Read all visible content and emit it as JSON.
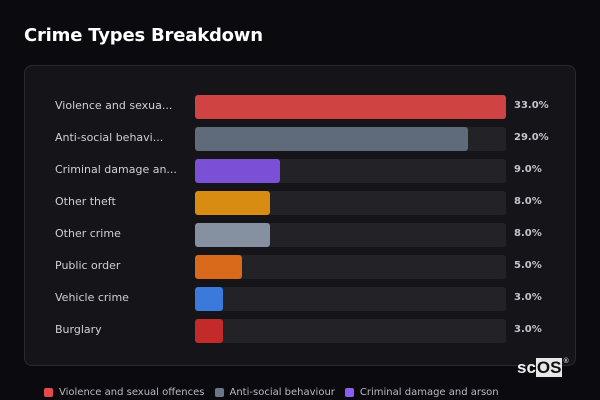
{
  "header": {
    "title": "Crime Types Breakdown"
  },
  "chart_data": {
    "type": "bar",
    "orientation": "horizontal",
    "title": "Crime Types Breakdown",
    "categories": [
      "Violence and sexual offences",
      "Anti-social behaviour",
      "Criminal damage and arson",
      "Other theft",
      "Other crime",
      "Public order",
      "Vehicle crime",
      "Burglary"
    ],
    "display_labels": [
      "Violence and sexua...",
      "Anti-social behavi...",
      "Criminal damage an...",
      "Other theft",
      "Other crime",
      "Public order",
      "Vehicle crime",
      "Burglary"
    ],
    "values": [
      33.0,
      29.0,
      9.0,
      8.0,
      8.0,
      5.0,
      3.0,
      3.0
    ],
    "value_labels": [
      "33.0%",
      "29.0%",
      "9.0%",
      "8.0%",
      "8.0%",
      "5.0%",
      "3.0%",
      "3.0%"
    ],
    "colors": [
      "#d04343",
      "#5f6b7b",
      "#7b4fd6",
      "#d88d12",
      "#8590a0",
      "#d9691b",
      "#3b79db",
      "#c42a2a"
    ],
    "xlabel": "",
    "ylabel": "",
    "xlim": [
      0,
      33
    ],
    "grid": false,
    "legend": {
      "position": "bottom",
      "entries": [
        {
          "label": "Violence and sexual offences",
          "color": "#e5484d"
        },
        {
          "label": "Anti-social behaviour",
          "color": "#6b7789"
        },
        {
          "label": "Criminal damage and arson",
          "color": "#8b5cf6"
        }
      ]
    }
  },
  "rows": [
    {
      "label": "Violence and sexua...",
      "pct": "33.0%",
      "width": 100,
      "color": "#d04343"
    },
    {
      "label": "Anti-social behavi...",
      "pct": "29.0%",
      "width": 87.9,
      "color": "#5f6b7b"
    },
    {
      "label": "Criminal damage an...",
      "pct": "9.0%",
      "width": 27.3,
      "color": "#7b4fd6"
    },
    {
      "label": "Other theft",
      "pct": "8.0%",
      "width": 24.2,
      "color": "#d88d12"
    },
    {
      "label": "Other crime",
      "pct": "8.0%",
      "width": 24.2,
      "color": "#8590a0"
    },
    {
      "label": "Public order",
      "pct": "5.0%",
      "width": 15.2,
      "color": "#d9691b"
    },
    {
      "label": "Vehicle crime",
      "pct": "3.0%",
      "width": 9.1,
      "color": "#3b79db"
    },
    {
      "label": "Burglary",
      "pct": "3.0%",
      "width": 9.1,
      "color": "#c42a2a"
    }
  ],
  "legend": [
    {
      "label": "Violence and sexual offences",
      "color": "#e5484d"
    },
    {
      "label": "Anti-social behaviour",
      "color": "#6b7789"
    },
    {
      "label": "Criminal damage and arson",
      "color": "#8b5cf6"
    }
  ],
  "logo": {
    "left": "sc",
    "box": "OS",
    "mark": "®"
  }
}
